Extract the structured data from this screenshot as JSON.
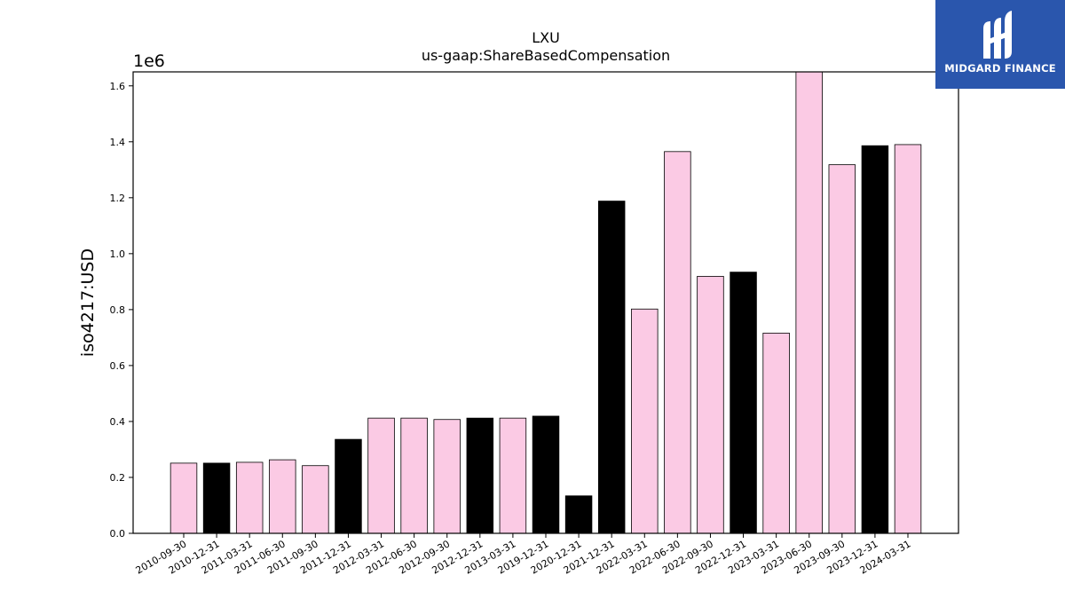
{
  "logo": {
    "text": "MIDGARD FINANCE",
    "background": "#2a56ad"
  },
  "chart_data": {
    "type": "bar",
    "title": "LXU",
    "subtitle": "us-gaap:ShareBasedCompensation",
    "ylabel": "iso4217:USD",
    "xlabel": "",
    "y_scale_label": "1e6",
    "ylim": [
      0,
      1.65
    ],
    "y_ticks": [
      0.0,
      0.2,
      0.4,
      0.6,
      0.8,
      1.0,
      1.2,
      1.4,
      1.6
    ],
    "y_tick_labels": [
      "0.0",
      "0.2",
      "0.4",
      "0.6",
      "0.8",
      "1.0",
      "1.2",
      "1.4",
      "1.6"
    ],
    "grid": false,
    "legend": "none",
    "colors": {
      "pink": "#fbcae4",
      "black": "#000000",
      "edge": "#000000"
    },
    "categories": [
      "2010-09-30",
      "2010-12-31",
      "2011-03-31",
      "2011-06-30",
      "2011-09-30",
      "2011-12-31",
      "2012-03-31",
      "2012-06-30",
      "2012-09-30",
      "2012-12-31",
      "2013-03-31",
      "2019-12-31",
      "2020-12-31",
      "2021-12-31",
      "2022-03-31",
      "2022-06-30",
      "2022-09-30",
      "2022-12-31",
      "2023-03-31",
      "2023-06-30",
      "2023-09-30",
      "2023-12-31",
      "2024-03-31"
    ],
    "values": [
      0.251,
      0.251,
      0.254,
      0.263,
      0.242,
      0.336,
      0.412,
      0.412,
      0.407,
      0.412,
      0.412,
      0.419,
      0.134,
      1.188,
      0.802,
      1.365,
      0.919,
      0.934,
      0.716,
      1.65,
      1.318,
      1.386,
      1.39
    ],
    "bar_colors": [
      "pink",
      "black",
      "pink",
      "pink",
      "pink",
      "black",
      "pink",
      "pink",
      "pink",
      "black",
      "pink",
      "black",
      "black",
      "black",
      "pink",
      "pink",
      "pink",
      "black",
      "pink",
      "pink",
      "pink",
      "black",
      "pink"
    ]
  }
}
